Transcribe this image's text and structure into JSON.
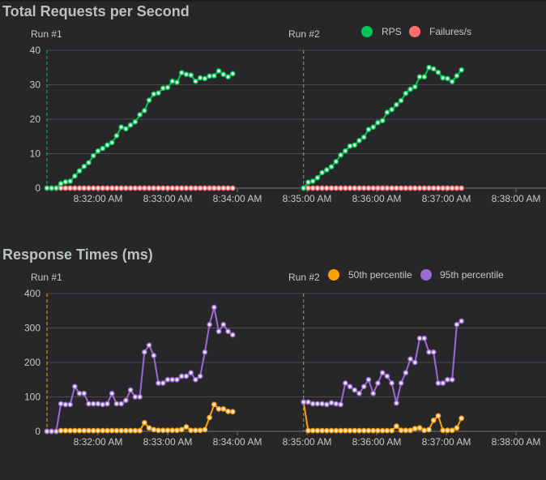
{
  "chart_data": [
    {
      "type": "line",
      "title": "Total Requests per Second",
      "ylim": [
        0,
        40
      ],
      "yticks": [
        "0",
        "10",
        "20",
        "30",
        "40"
      ],
      "xticks": [
        "8:32:00 AM",
        "8:33:00 AM",
        "8:34:00 AM",
        "8:35:00 AM",
        "8:36:00 AM",
        "8:37:00 AM",
        "8:38:00 AM"
      ],
      "grid": true,
      "legend_placement": "top-right",
      "runs": [
        {
          "label": "Run #1",
          "start": "8:31:16"
        },
        {
          "label": "Run #2",
          "start": "8:34:57"
        }
      ],
      "series": [
        {
          "name": "RPS",
          "color": "#00c853",
          "runs": [
            {
              "x": [
                "8:31:16",
                "8:31:20",
                "8:31:24",
                "8:31:28",
                "8:31:32",
                "8:31:36",
                "8:31:40",
                "8:31:44",
                "8:31:48",
                "8:31:52",
                "8:31:56",
                "8:32:00",
                "8:32:04",
                "8:32:08",
                "8:32:12",
                "8:32:16",
                "8:32:20",
                "8:32:24",
                "8:32:28",
                "8:32:32",
                "8:32:36",
                "8:32:40",
                "8:32:44",
                "8:32:48",
                "8:32:52",
                "8:32:56",
                "8:33:00",
                "8:33:04",
                "8:33:08",
                "8:33:12",
                "8:33:16",
                "8:33:20",
                "8:33:24",
                "8:33:28",
                "8:33:32",
                "8:33:36",
                "8:33:40",
                "8:33:44",
                "8:33:48",
                "8:33:52",
                "8:33:56"
              ],
              "y": [
                0,
                0,
                0,
                1.3,
                1.8,
                2,
                3.5,
                5,
                6.3,
                7.4,
                9.4,
                10.8,
                11.5,
                12.5,
                13.2,
                15.2,
                17.7,
                17.2,
                18.3,
                19.2,
                21.3,
                22.5,
                25.5,
                27.3,
                27.6,
                29,
                29.2,
                31,
                30.7,
                33.5,
                33,
                32.8,
                31,
                32,
                31.8,
                32.5,
                32.6,
                34,
                33,
                32.3,
                33.2
              ]
            },
            {
              "x": [
                "8:34:57",
                "8:35:01",
                "8:35:05",
                "8:35:09",
                "8:35:13",
                "8:35:17",
                "8:35:21",
                "8:35:25",
                "8:35:29",
                "8:35:33",
                "8:35:37",
                "8:35:41",
                "8:35:45",
                "8:35:49",
                "8:35:53",
                "8:35:57",
                "8:36:01",
                "8:36:05",
                "8:36:09",
                "8:36:13",
                "8:36:17",
                "8:36:21",
                "8:36:25",
                "8:36:29",
                "8:36:33",
                "8:36:37",
                "8:36:41",
                "8:36:45",
                "8:36:49",
                "8:36:53",
                "8:36:57",
                "8:37:01",
                "8:37:05",
                "8:37:09",
                "8:37:13"
              ],
              "y": [
                0,
                1.7,
                2,
                3,
                4.5,
                5.3,
                6.2,
                7.7,
                9.6,
                10.8,
                12.2,
                12.5,
                13.8,
                14.8,
                17,
                17.7,
                19,
                19.6,
                22,
                22.8,
                24.2,
                25.4,
                27.5,
                28.7,
                29.4,
                32.3,
                32.3,
                35,
                34.6,
                33.6,
                32,
                31.8,
                30.9,
                32.6,
                34.3
              ]
            }
          ]
        },
        {
          "name": "Failures/s",
          "color": "#ff6d6d",
          "runs": [
            {
              "x": "same-as-rps",
              "y": [
                0,
                0,
                0,
                0,
                0,
                0,
                0,
                0,
                0,
                0,
                0,
                0,
                0,
                0,
                0,
                0,
                0,
                0,
                0,
                0,
                0,
                0,
                0,
                0,
                0,
                0,
                0,
                0,
                0,
                0,
                0,
                0,
                0,
                0,
                0,
                0,
                0,
                0,
                0,
                0,
                0
              ]
            },
            {
              "x": "same-as-rps",
              "y": [
                0,
                0,
                0,
                0,
                0,
                0,
                0,
                0,
                0,
                0,
                0,
                0,
                0,
                0,
                0,
                0,
                0,
                0,
                0,
                0,
                0,
                0,
                0,
                0,
                0,
                0,
                0,
                0,
                0,
                0,
                0,
                0,
                0,
                0,
                0
              ]
            }
          ]
        }
      ]
    },
    {
      "type": "line",
      "title": "Response Times (ms)",
      "ylim": [
        0,
        400
      ],
      "yticks": [
        "0",
        "100",
        "200",
        "300",
        "400"
      ],
      "xticks": [
        "8:32:00 AM",
        "8:33:00 AM",
        "8:34:00 AM",
        "8:35:00 AM",
        "8:36:00 AM",
        "8:37:00 AM",
        "8:38:00 AM"
      ],
      "grid": true,
      "legend_placement": "top-right",
      "runs": [
        {
          "label": "Run #1",
          "start": "8:31:16"
        },
        {
          "label": "Run #2",
          "start": "8:34:57"
        }
      ],
      "series": [
        {
          "name": "50th percentile",
          "color": "#ffa000",
          "runs": [
            {
              "x": "same-as-rps",
              "y": [
                0,
                0,
                0,
                2,
                2,
                2,
                2,
                2,
                2,
                2,
                2,
                2,
                2,
                2,
                2,
                2,
                2,
                2,
                2,
                2,
                2,
                25,
                10,
                5,
                3,
                3,
                3,
                3,
                3,
                5,
                13,
                3,
                3,
                3,
                5,
                40,
                78,
                65,
                65,
                58,
                57
              ]
            },
            {
              "x": "same-as-rps",
              "y": [
                85,
                2,
                2,
                2,
                2,
                2,
                2,
                2,
                2,
                2,
                2,
                2,
                2,
                2,
                2,
                2,
                2,
                2,
                2,
                2,
                15,
                3,
                3,
                3,
                8,
                10,
                3,
                5,
                32,
                45,
                3,
                3,
                3,
                10,
                38
              ]
            }
          ]
        },
        {
          "name": "95th percentile",
          "color": "#9c6ad6",
          "runs": [
            {
              "x": "same-as-rps",
              "y": [
                0,
                0,
                0,
                80,
                78,
                78,
                130,
                110,
                110,
                80,
                80,
                80,
                78,
                80,
                110,
                80,
                80,
                90,
                120,
                100,
                100,
                230,
                250,
                220,
                140,
                140,
                150,
                150,
                150,
                160,
                160,
                170,
                150,
                160,
                230,
                310,
                360,
                290,
                310,
                290,
                280
              ]
            },
            {
              "x": "same-as-rps",
              "y": [
                85,
                85,
                80,
                80,
                80,
                78,
                83,
                80,
                78,
                140,
                130,
                120,
                110,
                130,
                150,
                110,
                140,
                170,
                160,
                140,
                82,
                140,
                170,
                210,
                200,
                270,
                270,
                230,
                230,
                140,
                140,
                150,
                150,
                310,
                320
              ]
            }
          ]
        }
      ]
    }
  ]
}
